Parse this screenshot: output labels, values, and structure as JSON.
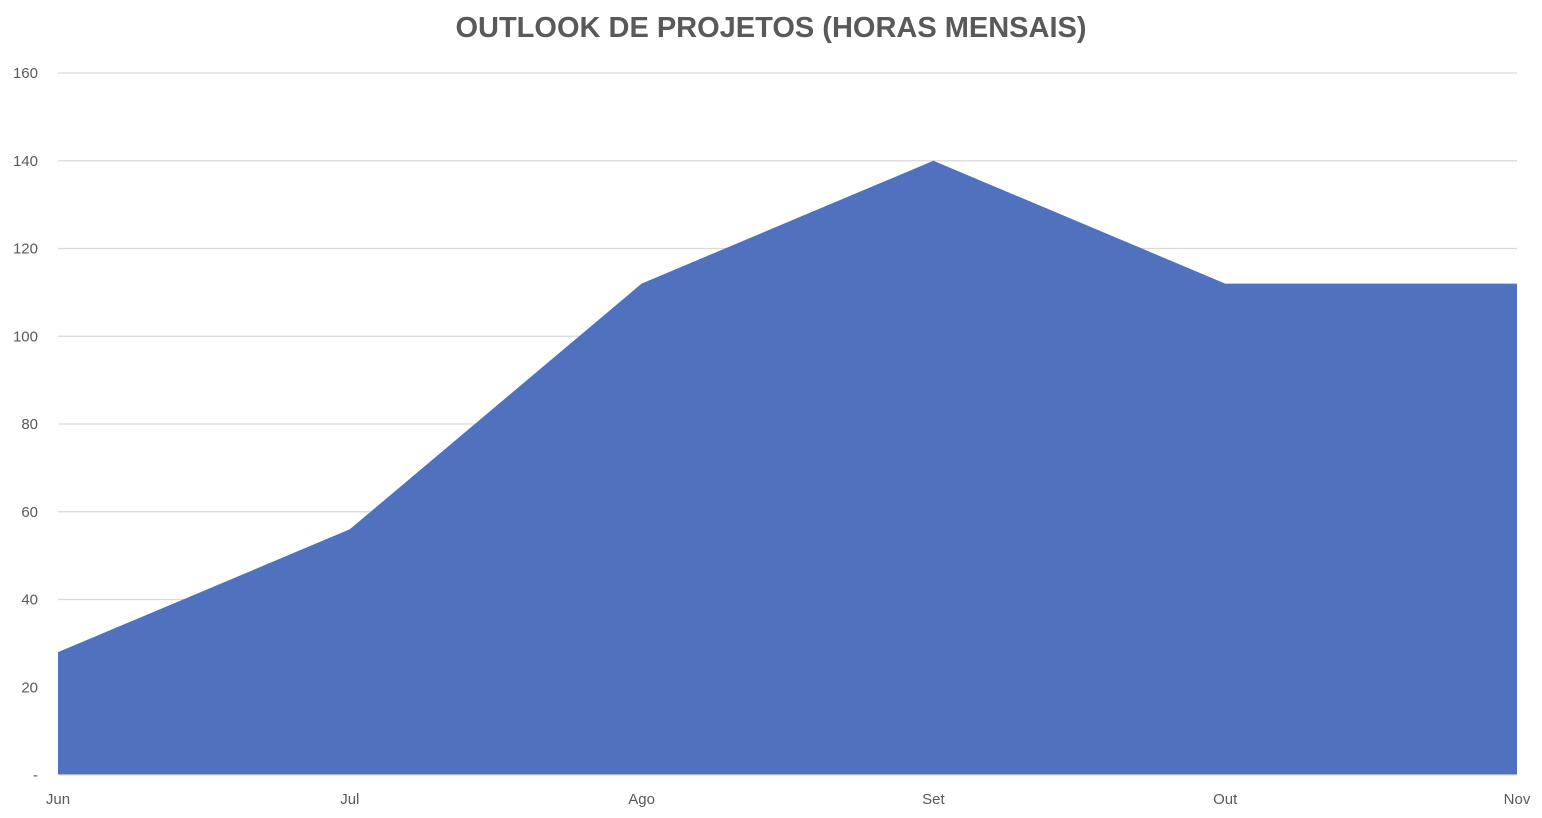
{
  "chart_data": {
    "type": "area",
    "title": "OUTLOOK DE PROJETOS (HORAS MENSAIS)",
    "xlabel": "",
    "ylabel": "",
    "categories": [
      "Jun",
      "Jul",
      "Ago",
      "Set",
      "Out",
      "Nov"
    ],
    "series": [
      {
        "values": [
          28,
          56,
          112,
          140,
          112,
          112
        ],
        "color": "#4f71be"
      }
    ],
    "ylim": [
      0,
      160
    ],
    "yticks": [
      0,
      20,
      40,
      60,
      80,
      100,
      120,
      140,
      160
    ],
    "ytick_labels": [
      "-",
      "20",
      "40",
      "60",
      "80",
      "100",
      "120",
      "140",
      "160"
    ],
    "grid": true,
    "legend": "none"
  }
}
